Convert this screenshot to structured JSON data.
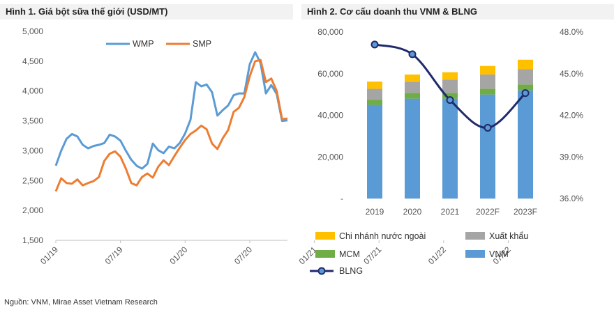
{
  "source": "Nguồn: VNM, Mirae Asset Vietnam Research",
  "chart_data": [
    {
      "type": "line",
      "title": "Hình 1. Giá bột sữa thế giới (USD/MT)",
      "ylim": [
        1500,
        5000
      ],
      "yticks": [
        "1,500",
        "2,000",
        "2,500",
        "3,000",
        "3,500",
        "4,000",
        "4,500",
        "5,000"
      ],
      "ytick_values": [
        1500,
        2000,
        2500,
        3000,
        3500,
        4000,
        4500,
        5000
      ],
      "x_tick_labels": [
        "01/19",
        "07/19",
        "01/20",
        "07/20",
        "01/21",
        "07/21",
        "01/22",
        "07/22"
      ],
      "x_tick_index": [
        0,
        12,
        24,
        36,
        48,
        60,
        72,
        84
      ],
      "legend_position": "top",
      "grid": false,
      "colors": {
        "WMP": "#5b9bd5",
        "SMP": "#ed7d31"
      },
      "series": [
        {
          "name": "WMP",
          "values": [
            2750,
            3000,
            3200,
            3280,
            3240,
            3100,
            3040,
            3080,
            3100,
            3130,
            3270,
            3240,
            3170,
            3000,
            2850,
            2750,
            2700,
            2780,
            3120,
            3010,
            2960,
            3070,
            3040,
            3130,
            3290,
            3520,
            4150,
            4080,
            4110,
            3980,
            3590,
            3680,
            3760,
            3930,
            3960,
            3960,
            4450,
            4650,
            4470,
            3960,
            4100,
            3950,
            3500,
            3510
          ]
        },
        {
          "name": "SMP",
          "values": [
            2320,
            2540,
            2460,
            2450,
            2520,
            2420,
            2460,
            2490,
            2560,
            2830,
            2950,
            2990,
            2900,
            2700,
            2460,
            2420,
            2560,
            2620,
            2550,
            2730,
            2840,
            2760,
            2910,
            3050,
            3180,
            3280,
            3340,
            3420,
            3360,
            3120,
            3030,
            3210,
            3350,
            3650,
            3720,
            3900,
            4250,
            4500,
            4520,
            4150,
            4210,
            4000,
            3530,
            3540
          ]
        }
      ]
    },
    {
      "type": "bar",
      "title": "Hình 2. Cơ cấu doanh thu VNM & BLNG",
      "categories": [
        "2019",
        "2020",
        "2021",
        "2022F",
        "2023F"
      ],
      "ylim": [
        0,
        80000
      ],
      "yticks": [
        "-",
        "20,000",
        "40,000",
        "60,000",
        "80,000"
      ],
      "ytick_values": [
        0,
        20000,
        40000,
        60000,
        80000
      ],
      "y2lim": [
        36.0,
        48.0
      ],
      "y2ticks": [
        "36.0%",
        "39.0%",
        "42.0%",
        "45.0%",
        "48.0%"
      ],
      "y2tick_values": [
        36.0,
        39.0,
        42.0,
        45.0,
        48.0
      ],
      "stacked": true,
      "legend_position": "bottom",
      "series": [
        {
          "name": "VNM",
          "color": "#5b9bd5",
          "values": [
            45000,
            48000,
            48000,
            50000,
            52000
          ]
        },
        {
          "name": "MCM",
          "color": "#70ad47",
          "values": [
            2500,
            2800,
            2800,
            2800,
            2800
          ]
        },
        {
          "name": "Xuất khẩu",
          "color": "#a5a5a5",
          "values": [
            5200,
            5300,
            6300,
            6800,
            7300
          ]
        },
        {
          "name": "Chi nhánh nước ngoài",
          "color": "#ffc000",
          "values": [
            3500,
            3500,
            3600,
            4100,
            4600
          ]
        },
        {
          "name": "BLNG",
          "color": "#1f2a6b",
          "axis": "secondary",
          "type": "line",
          "values": [
            47.1,
            46.4,
            43.1,
            41.1,
            43.6
          ]
        }
      ],
      "legend_order": [
        "Chi nhánh nước ngoài",
        "Xuất khẩu",
        "MCM",
        "VNM",
        "BLNG"
      ]
    }
  ]
}
